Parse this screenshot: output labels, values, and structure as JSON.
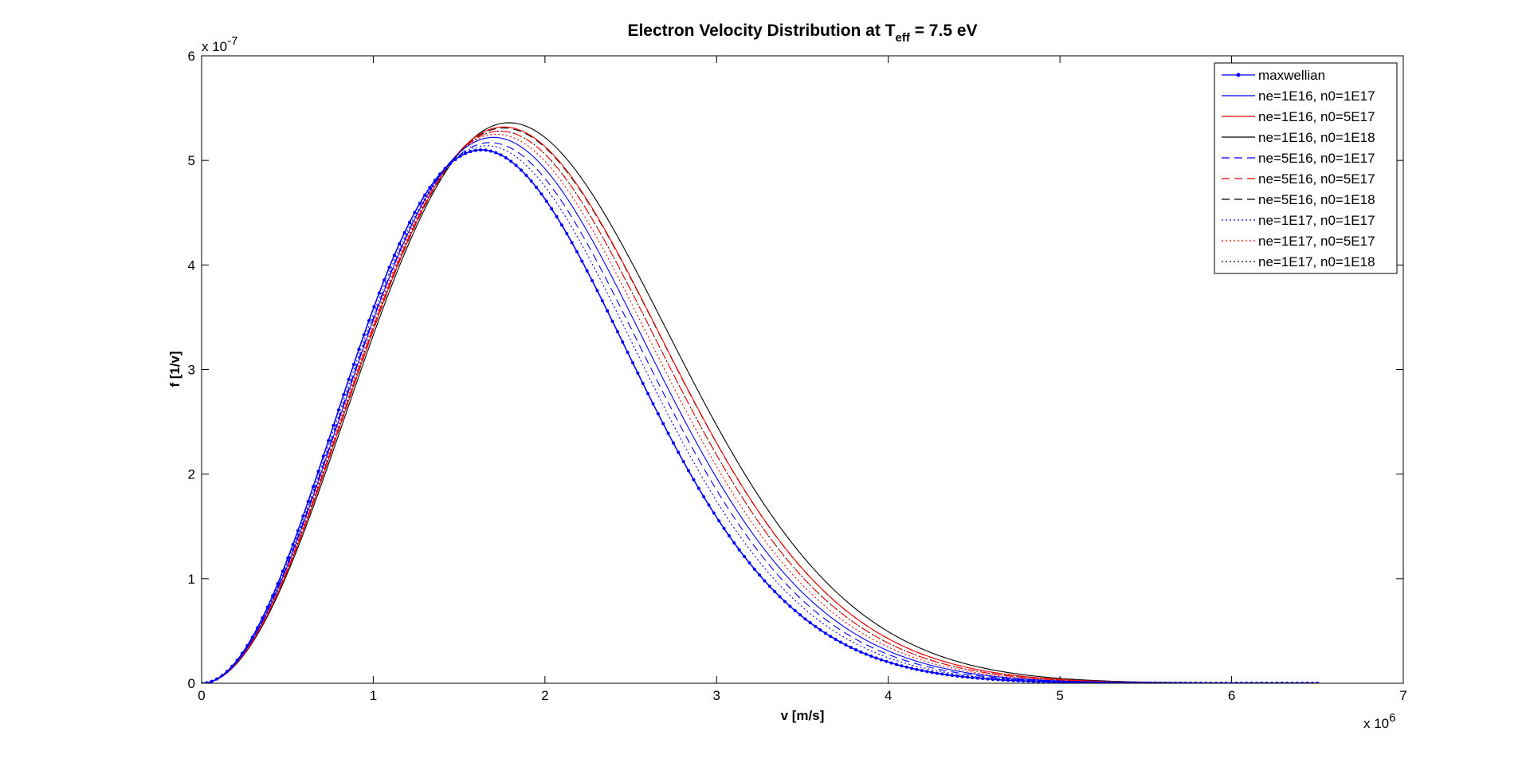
{
  "chart_data": {
    "type": "line",
    "title": "Electron Velocity Distribution at T",
    "title_sub": "eff",
    "title_tail": " = 7.5 eV",
    "xlabel": "v [m/s]",
    "ylabel": "f [1/v]",
    "x_multiplier": {
      "base": "x 10",
      "exp": "6"
    },
    "y_multiplier": {
      "base": "x 10",
      "exp": "-7"
    },
    "xlim": [
      0,
      7
    ],
    "ylim": [
      0,
      6
    ],
    "xticks": [
      "0",
      "1",
      "2",
      "3",
      "4",
      "5",
      "6",
      "7"
    ],
    "yticks": [
      "0",
      "1",
      "2",
      "3",
      "4",
      "5",
      "6"
    ],
    "legend_position": "top-right",
    "x_range": [
      0,
      6.5
    ],
    "series": [
      {
        "name": "maxwellian",
        "color": "#0000ff",
        "style": "solid-dot",
        "peak_x": 1.63,
        "peak_y": 5.1
      },
      {
        "name": "ne=1E16, n0=1E17",
        "color": "#0000ff",
        "style": "solid",
        "peak_x": 1.7,
        "peak_y": 5.22
      },
      {
        "name": "ne=1E16, n0=5E17",
        "color": "#ff0000",
        "style": "solid",
        "peak_x": 1.76,
        "peak_y": 5.32
      },
      {
        "name": "ne=1E16, n0=1E18",
        "color": "#000000",
        "style": "solid",
        "peak_x": 1.79,
        "peak_y": 5.36
      },
      {
        "name": "ne=5E16, n0=1E17",
        "color": "#0000ff",
        "style": "dashed",
        "peak_x": 1.68,
        "peak_y": 5.17
      },
      {
        "name": "ne=5E16, n0=5E17",
        "color": "#ff0000",
        "style": "dashed",
        "peak_x": 1.74,
        "peak_y": 5.28
      },
      {
        "name": "ne=5E16, n0=1E18",
        "color": "#000000",
        "style": "dashed",
        "peak_x": 1.76,
        "peak_y": 5.31
      },
      {
        "name": "ne=1E17, n0=1E17",
        "color": "#0000ff",
        "style": "dotted",
        "peak_x": 1.66,
        "peak_y": 5.14
      },
      {
        "name": "ne=1E17, n0=5E17",
        "color": "#ff0000",
        "style": "dotted",
        "peak_x": 1.72,
        "peak_y": 5.25
      },
      {
        "name": "ne=1E17, n0=1E18",
        "color": "#000000",
        "style": "dotted",
        "peak_x": 1.74,
        "peak_y": 5.28
      }
    ]
  }
}
